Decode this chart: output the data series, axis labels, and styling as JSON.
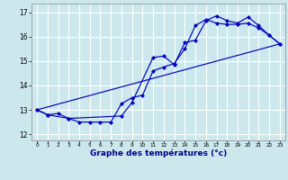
{
  "xlabel": "Graphe des températures (°c)",
  "bg_color": "#cce8ed",
  "grid_color": "#ffffff",
  "line_color": "#0000bb",
  "xlim": [
    -0.5,
    23.5
  ],
  "ylim": [
    11.75,
    17.35
  ],
  "xticks": [
    0,
    1,
    2,
    3,
    4,
    5,
    6,
    7,
    8,
    9,
    10,
    11,
    12,
    13,
    14,
    15,
    16,
    17,
    18,
    19,
    20,
    21,
    22,
    23
  ],
  "yticks": [
    12,
    13,
    14,
    15,
    16,
    17
  ],
  "line1_x": [
    0,
    1,
    2,
    3,
    4,
    5,
    6,
    7,
    8,
    9,
    10,
    11,
    12,
    13,
    14,
    15,
    16,
    17,
    18,
    19,
    20,
    21,
    22,
    23
  ],
  "line1_y": [
    13.0,
    12.8,
    12.85,
    12.65,
    12.5,
    12.5,
    12.5,
    12.5,
    13.25,
    13.5,
    13.6,
    14.6,
    14.75,
    14.9,
    15.5,
    16.45,
    16.7,
    16.55,
    16.5,
    16.5,
    16.55,
    16.35,
    16.05,
    15.7
  ],
  "line2_x": [
    0,
    1,
    3,
    8,
    9,
    11,
    12,
    13,
    14,
    15,
    16,
    17,
    18,
    19,
    20,
    21,
    22,
    23
  ],
  "line2_y": [
    13.0,
    12.8,
    12.65,
    12.75,
    13.3,
    15.15,
    15.2,
    14.85,
    15.75,
    15.85,
    16.65,
    16.85,
    16.65,
    16.55,
    16.8,
    16.45,
    16.05,
    15.7
  ],
  "line3_x": [
    0,
    23
  ],
  "line3_y": [
    13.0,
    15.7
  ],
  "xlabel_fontsize": 6.5,
  "xlabel_color": "#00008b",
  "xtick_fontsize": 4.2,
  "ytick_fontsize": 5.5
}
